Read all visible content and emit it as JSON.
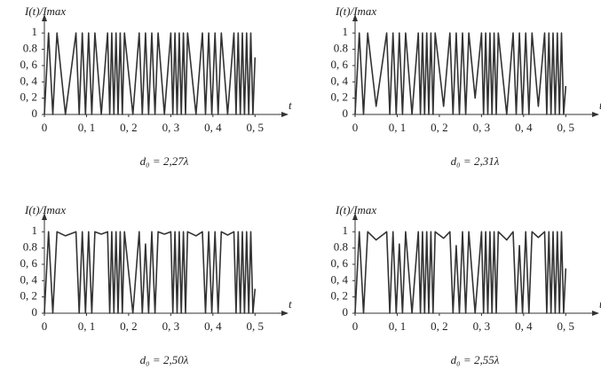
{
  "chart_data": [
    {
      "type": "line",
      "title": "d₀ = 2,27λ",
      "y_label": "I(t)/Imax",
      "x_label": "t",
      "color": "#333333",
      "xlim": [
        0,
        0.55
      ],
      "ylim": [
        0,
        1.1
      ],
      "xticks": [
        0,
        {
          "value": 0.1,
          "label": "0, 1"
        },
        {
          "value": 0.2,
          "label": "0, 2"
        },
        {
          "value": 0.3,
          "label": "0, 3"
        },
        {
          "value": 0.4,
          "label": "0, 4"
        },
        {
          "value": 0.5,
          "label": "0, 5"
        }
      ],
      "yticks": [
        0,
        {
          "value": 0.2,
          "label": "0, 2"
        },
        {
          "value": 0.4,
          "label": "0, 4"
        },
        {
          "value": 0.6,
          "label": "0, 6"
        },
        {
          "value": 0.8,
          "label": "0.8"
        },
        1
      ],
      "x": [
        0,
        0.01,
        0.02,
        0.03,
        0.05,
        0.075,
        0.0825,
        0.09,
        0.0975,
        0.105,
        0.1125,
        0.12,
        0.135,
        0.15,
        0.155,
        0.16,
        0.165,
        0.17,
        0.175,
        0.18,
        0.185,
        0.19,
        0.21,
        0.225,
        0.2325,
        0.24,
        0.2475,
        0.255,
        0.2625,
        0.27,
        0.285,
        0.3,
        0.305,
        0.31,
        0.315,
        0.32,
        0.325,
        0.33,
        0.335,
        0.34,
        0.36,
        0.375,
        0.3825,
        0.39,
        0.3975,
        0.405,
        0.4125,
        0.42,
        0.435,
        0.45,
        0.455,
        0.46,
        0.465,
        0.47,
        0.475,
        0.48,
        0.485,
        0.49,
        0.495,
        0.5
      ],
      "values": [
        0,
        1,
        0,
        1,
        0,
        1,
        0,
        1,
        0,
        1,
        0,
        1,
        0,
        1,
        0,
        1,
        0,
        1,
        0,
        1,
        0,
        1,
        0,
        1,
        0,
        1,
        0,
        1,
        0,
        1,
        0,
        1,
        0,
        1,
        0,
        1,
        0,
        1,
        0,
        1,
        0,
        1,
        0,
        1,
        0,
        1,
        0,
        1,
        0,
        1,
        0,
        1,
        0,
        1,
        0,
        1,
        0,
        1,
        0,
        0.7
      ]
    },
    {
      "type": "line",
      "title": "d₀ = 2,31λ",
      "y_label": "I(t)/Imax",
      "x_label": "t",
      "color": "#333333",
      "xlim": [
        0,
        0.55
      ],
      "ylim": [
        0,
        1.1
      ],
      "xticks": [
        0,
        {
          "value": 0.1,
          "label": "0, 1"
        },
        {
          "value": 0.2,
          "label": "0, 2"
        },
        {
          "value": 0.3,
          "label": "0, 3"
        },
        {
          "value": 0.4,
          "label": "0, 4"
        },
        {
          "value": 0.5,
          "label": "0, 5"
        }
      ],
      "yticks": [
        0,
        {
          "value": 0.2,
          "label": "0, 2"
        },
        {
          "value": 0.4,
          "label": "0, 4"
        },
        {
          "value": 0.6,
          "label": "0, 6"
        },
        {
          "value": 0.8,
          "label": "0.8"
        },
        1
      ],
      "x": [
        0,
        0.01,
        0.02,
        0.03,
        0.05,
        0.075,
        0.0825,
        0.09,
        0.0975,
        0.105,
        0.1125,
        0.12,
        0.135,
        0.15,
        0.155,
        0.16,
        0.165,
        0.17,
        0.175,
        0.18,
        0.185,
        0.19,
        0.21,
        0.225,
        0.2325,
        0.24,
        0.2475,
        0.255,
        0.2625,
        0.27,
        0.285,
        0.3,
        0.305,
        0.31,
        0.315,
        0.32,
        0.325,
        0.33,
        0.335,
        0.34,
        0.36,
        0.375,
        0.3825,
        0.39,
        0.3975,
        0.405,
        0.4125,
        0.42,
        0.435,
        0.45,
        0.455,
        0.46,
        0.465,
        0.47,
        0.475,
        0.48,
        0.485,
        0.49,
        0.495,
        0.5
      ],
      "values": [
        0,
        1,
        0,
        1,
        0.1,
        1,
        0,
        1,
        0,
        1,
        0,
        1,
        0,
        1,
        0,
        1,
        0,
        1,
        0,
        1,
        0,
        1,
        0.1,
        1,
        0,
        1,
        0,
        1,
        0,
        1,
        0.2,
        1,
        0,
        1,
        0,
        1,
        0,
        1,
        0,
        1,
        0,
        1,
        0,
        1,
        0,
        1,
        0,
        1,
        0.1,
        1,
        0,
        1,
        0,
        1,
        0,
        1,
        0,
        1,
        0,
        0.35
      ]
    },
    {
      "type": "line",
      "title": "d₀ = 2,50λ",
      "y_label": "I(t)/Imax",
      "x_label": "t",
      "color": "#333333",
      "xlim": [
        0,
        0.55
      ],
      "ylim": [
        0,
        1.1
      ],
      "xticks": [
        0,
        {
          "value": 0.1,
          "label": "0, 1"
        },
        {
          "value": 0.2,
          "label": "0, 2"
        },
        {
          "value": 0.3,
          "label": "0, 3"
        },
        {
          "value": 0.4,
          "label": "0, 4"
        },
        {
          "value": 0.5,
          "label": "0, 5"
        }
      ],
      "yticks": [
        0,
        {
          "value": 0.2,
          "label": "0, 2"
        },
        {
          "value": 0.4,
          "label": "0, 4"
        },
        {
          "value": 0.6,
          "label": "0, 6"
        },
        {
          "value": 0.8,
          "label": "0.8"
        },
        1
      ],
      "x": [
        0,
        0.01,
        0.02,
        0.03,
        0.05,
        0.075,
        0.0825,
        0.09,
        0.0975,
        0.105,
        0.1125,
        0.12,
        0.135,
        0.15,
        0.155,
        0.16,
        0.165,
        0.17,
        0.175,
        0.18,
        0.185,
        0.19,
        0.21,
        0.225,
        0.2325,
        0.24,
        0.2475,
        0.255,
        0.2625,
        0.27,
        0.285,
        0.3,
        0.305,
        0.31,
        0.315,
        0.32,
        0.325,
        0.33,
        0.335,
        0.34,
        0.36,
        0.375,
        0.3825,
        0.39,
        0.3975,
        0.405,
        0.4125,
        0.42,
        0.435,
        0.45,
        0.455,
        0.46,
        0.465,
        0.47,
        0.475,
        0.48,
        0.485,
        0.49,
        0.495,
        0.5
      ],
      "values": [
        0,
        1,
        0,
        1,
        0.95,
        1,
        0,
        1,
        0,
        1,
        0,
        1,
        0.97,
        1,
        0,
        1,
        0,
        1,
        0,
        1,
        0,
        1,
        0,
        1,
        0,
        0.85,
        0,
        1,
        0,
        1,
        0.97,
        1,
        0,
        1,
        0,
        1,
        0,
        1,
        0,
        1,
        0.95,
        1,
        0,
        1,
        0,
        1,
        0,
        1,
        0.96,
        1,
        0,
        1,
        0,
        1,
        0,
        1,
        0,
        1,
        0,
        0.3
      ]
    },
    {
      "type": "line",
      "title": "d₀ = 2,55λ",
      "y_label": "I(t)/Imax",
      "x_label": "t",
      "color": "#333333",
      "xlim": [
        0,
        0.55
      ],
      "ylim": [
        0,
        1.1
      ],
      "xticks": [
        0,
        {
          "value": 0.1,
          "label": "0, 1"
        },
        {
          "value": 0.2,
          "label": "0, 2"
        },
        {
          "value": 0.3,
          "label": "0, 3"
        },
        {
          "value": 0.4,
          "label": "0, 4"
        },
        {
          "value": 0.5,
          "label": "0, 5"
        }
      ],
      "yticks": [
        0,
        {
          "value": 0.2,
          "label": "0, 2"
        },
        {
          "value": 0.4,
          "label": "0, 4"
        },
        {
          "value": 0.6,
          "label": "0, 6"
        },
        {
          "value": 0.8,
          "label": "0.8"
        },
        1
      ],
      "x": [
        0,
        0.01,
        0.02,
        0.03,
        0.05,
        0.075,
        0.0825,
        0.09,
        0.0975,
        0.105,
        0.1125,
        0.12,
        0.135,
        0.15,
        0.155,
        0.16,
        0.165,
        0.17,
        0.175,
        0.18,
        0.185,
        0.19,
        0.21,
        0.225,
        0.2325,
        0.24,
        0.2475,
        0.255,
        0.2625,
        0.27,
        0.285,
        0.3,
        0.305,
        0.31,
        0.315,
        0.32,
        0.325,
        0.33,
        0.335,
        0.34,
        0.36,
        0.375,
        0.3825,
        0.39,
        0.3975,
        0.405,
        0.4125,
        0.42,
        0.435,
        0.45,
        0.455,
        0.46,
        0.465,
        0.47,
        0.475,
        0.48,
        0.485,
        0.49,
        0.495,
        0.5
      ],
      "values": [
        0,
        1,
        0,
        1,
        0.9,
        1,
        0,
        1,
        0,
        0.85,
        0,
        1,
        0,
        1,
        0,
        1,
        0,
        1,
        0,
        1,
        0,
        1,
        0.92,
        1,
        0,
        0.83,
        0,
        1,
        0,
        1,
        0,
        1,
        0,
        1,
        0,
        1,
        0,
        1,
        0,
        1,
        0.9,
        1,
        0,
        0.83,
        0,
        1,
        0,
        1,
        0.93,
        1,
        0,
        1,
        0,
        1,
        0,
        1,
        0,
        1,
        0,
        0.55
      ]
    }
  ]
}
